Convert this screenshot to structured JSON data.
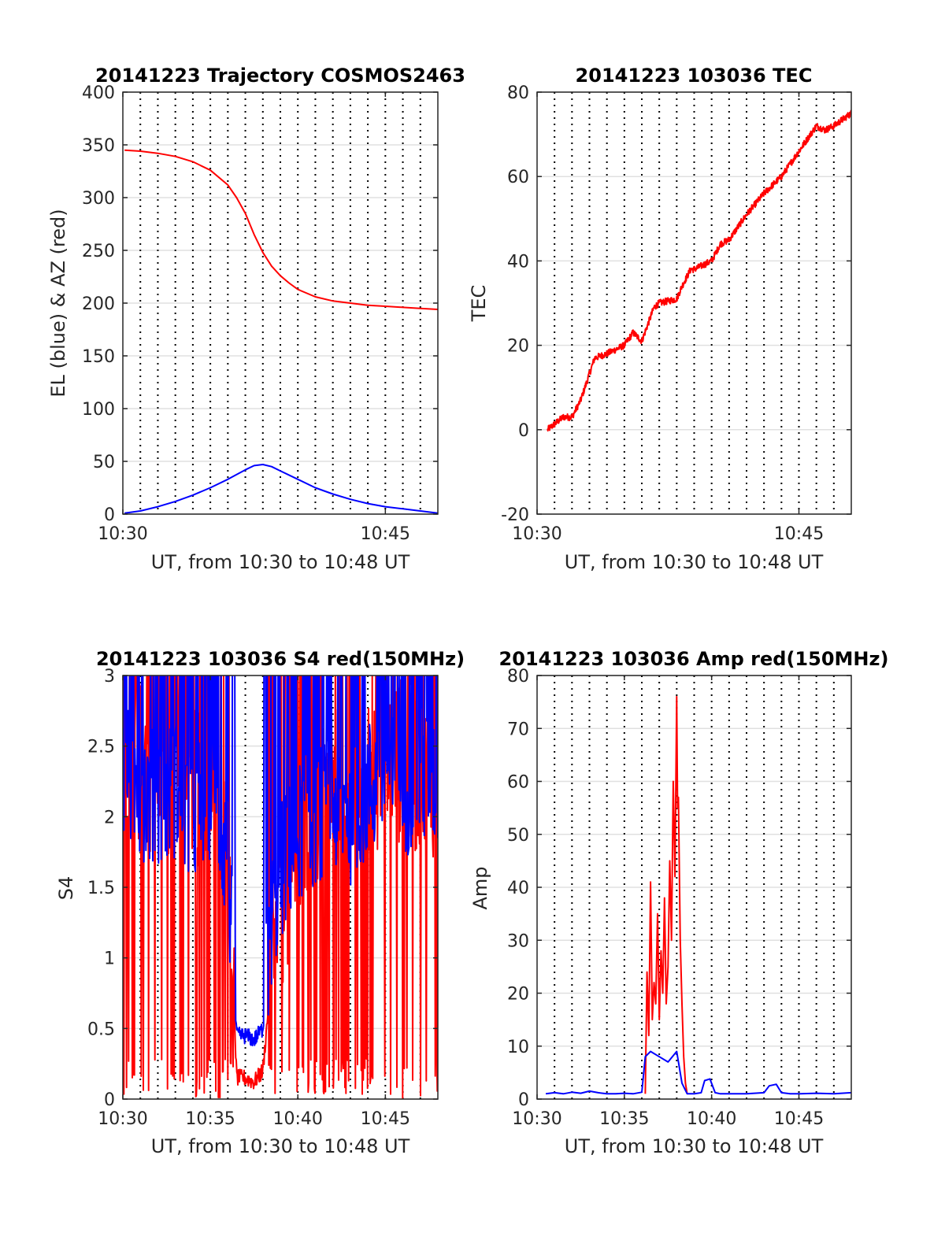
{
  "chart_data": [
    {
      "id": "trajectory",
      "type": "line",
      "title": "20141223 Trajectory COSMOS2463",
      "xlabel": "UT, from 10:30 to 10:48 UT",
      "ylabel": "EL (blue) & AZ (red)",
      "xlim": [
        0,
        18
      ],
      "ylim": [
        0,
        400
      ],
      "x_ticks": [
        {
          "value": 0,
          "label": "10:30"
        },
        {
          "value": 15,
          "label": "10:45"
        }
      ],
      "y_ticks": [
        {
          "value": 0,
          "label": "0"
        },
        {
          "value": 50,
          "label": "50"
        },
        {
          "value": 100,
          "label": "100"
        },
        {
          "value": 150,
          "label": "150"
        },
        {
          "value": 200,
          "label": "200"
        },
        {
          "value": 250,
          "label": "250"
        },
        {
          "value": 300,
          "label": "300"
        },
        {
          "value": 350,
          "label": "350"
        },
        {
          "value": 400,
          "label": "400"
        }
      ],
      "grid": "horizontal solid at y ticks, vertical dotted every minute",
      "series": [
        {
          "color": "#ff0000",
          "x": [
            0.1,
            1,
            2,
            3,
            4,
            5,
            6,
            6.5,
            7,
            7.5,
            8,
            8.5,
            9,
            9.5,
            10,
            11,
            12,
            13,
            14,
            15,
            16,
            17,
            18
          ],
          "y": [
            345,
            344,
            342,
            339,
            334,
            326,
            312,
            300,
            285,
            265,
            248,
            235,
            226,
            219,
            213,
            206,
            202,
            200,
            198,
            197,
            196,
            195,
            194
          ]
        },
        {
          "color": "#0000ff",
          "x": [
            0.1,
            1,
            2,
            3,
            4,
            5,
            6,
            7,
            7.5,
            8,
            8.5,
            9,
            10,
            11,
            12,
            13,
            14,
            15,
            16,
            17,
            18
          ],
          "y": [
            1,
            3,
            7,
            12,
            18,
            25,
            33,
            42,
            46,
            47,
            45,
            41,
            33,
            25,
            19,
            14,
            10,
            7,
            5,
            3,
            1
          ]
        }
      ]
    },
    {
      "id": "tec",
      "type": "line",
      "title": "20141223 103036 TEC",
      "xlabel": "UT, from 10:30 to 10:48 UT",
      "ylabel": "TEC",
      "xlim": [
        0,
        18
      ],
      "ylim": [
        -20,
        80
      ],
      "x_ticks": [
        {
          "value": 0,
          "label": "10:30"
        },
        {
          "value": 15,
          "label": "10:45"
        }
      ],
      "y_ticks": [
        {
          "value": -20,
          "label": "-20"
        },
        {
          "value": 0,
          "label": "0"
        },
        {
          "value": 20,
          "label": "20"
        },
        {
          "value": 40,
          "label": "40"
        },
        {
          "value": 60,
          "label": "60"
        },
        {
          "value": 80,
          "label": "80"
        }
      ],
      "grid": "horizontal solid at y ticks, vertical dotted every minute",
      "series": [
        {
          "color": "#ff0000",
          "noise": 0.8,
          "x": [
            0.6,
            1.5,
            2,
            2.5,
            3.3,
            4,
            5,
            5.5,
            6,
            6.7,
            7,
            8,
            8.3,
            8.8,
            9,
            10,
            10.5,
            11,
            12,
            13,
            14,
            14.5,
            15,
            16,
            16.5,
            17,
            18
          ],
          "y": [
            0,
            3,
            3,
            7,
            17,
            18,
            20,
            23,
            21,
            29,
            30,
            31,
            34,
            38,
            38,
            40,
            44,
            45,
            51,
            56,
            60,
            63,
            66,
            72,
            71,
            72,
            75
          ]
        }
      ]
    },
    {
      "id": "s4",
      "type": "line",
      "title": "20141223 103036 S4 red(150MHz)",
      "xlabel": "UT, from 10:30 to 10:48 UT",
      "ylabel": "S4",
      "xlim": [
        0,
        18
      ],
      "ylim": [
        0,
        3
      ],
      "x_ticks": [
        {
          "value": 0,
          "label": "10:30"
        },
        {
          "value": 5,
          "label": "10:35"
        },
        {
          "value": 10,
          "label": "10:40"
        },
        {
          "value": 15,
          "label": "10:45"
        }
      ],
      "y_ticks": [
        {
          "value": 0,
          "label": "0"
        },
        {
          "value": 0.5,
          "label": "0.5"
        },
        {
          "value": 1,
          "label": "1"
        },
        {
          "value": 1.5,
          "label": "1.5"
        },
        {
          "value": 2,
          "label": "2"
        },
        {
          "value": 2.5,
          "label": "2.5"
        },
        {
          "value": 3,
          "label": "3"
        }
      ],
      "grid": "horizontal solid at y ticks, vertical dotted every minute",
      "series": [
        {
          "color": "#ff0000",
          "noisy": true,
          "x": [
            0,
            1,
            2,
            3,
            4,
            5,
            6,
            6.5,
            7,
            7.5,
            8,
            8.5,
            9,
            10,
            11,
            12,
            13,
            14,
            15,
            16,
            17,
            18
          ],
          "y": [
            2.3,
            2.4,
            2.3,
            2.3,
            2.2,
            2.3,
            2.0,
            0.15,
            0.15,
            0.12,
            0.2,
            0.9,
            1.3,
            1.6,
            2.0,
            2.2,
            2.2,
            2.3,
            2.4,
            2.4,
            2.3,
            2.3
          ]
        },
        {
          "color": "#0000ff",
          "noisy": true,
          "x": [
            0,
            1,
            2,
            3,
            4,
            5,
            6,
            6.5,
            7,
            7.5,
            8,
            8.5,
            9,
            10,
            11,
            12,
            13,
            14,
            15,
            16,
            17,
            18
          ],
          "y": [
            2.3,
            2.2,
            2.1,
            2.2,
            2.0,
            2.2,
            1.7,
            0.45,
            0.45,
            0.42,
            0.5,
            1.3,
            1.6,
            1.9,
            2.0,
            2.1,
            2.0,
            2.2,
            2.3,
            2.2,
            2.3,
            2.2
          ]
        }
      ]
    },
    {
      "id": "amp",
      "type": "line",
      "title": "20141223 103036 Amp red(150MHz)",
      "xlabel": "UT, from 10:30 to 10:48 UT",
      "ylabel": "Amp",
      "xlim": [
        0,
        18
      ],
      "ylim": [
        0,
        80
      ],
      "x_ticks": [
        {
          "value": 0,
          "label": "10:30"
        },
        {
          "value": 5,
          "label": "10:35"
        },
        {
          "value": 10,
          "label": "10:40"
        },
        {
          "value": 15,
          "label": "10:45"
        }
      ],
      "y_ticks": [
        {
          "value": 0,
          "label": "0"
        },
        {
          "value": 10,
          "label": "10"
        },
        {
          "value": 20,
          "label": "20"
        },
        {
          "value": 30,
          "label": "30"
        },
        {
          "value": 40,
          "label": "40"
        },
        {
          "value": 50,
          "label": "50"
        },
        {
          "value": 60,
          "label": "60"
        },
        {
          "value": 70,
          "label": "70"
        },
        {
          "value": 80,
          "label": "80"
        }
      ],
      "grid": "horizontal solid at y ticks, vertical dotted every minute",
      "series": [
        {
          "color": "#ff0000",
          "x": [
            6.2,
            6.3,
            6.4,
            6.5,
            6.6,
            6.7,
            6.8,
            6.9,
            7.0,
            7.1,
            7.2,
            7.3,
            7.4,
            7.5,
            7.6,
            7.7,
            7.8,
            7.9,
            8.0,
            8.05,
            8.1,
            8.2,
            8.3,
            8.4,
            8.5,
            8.6
          ],
          "y": [
            1,
            24,
            12,
            41,
            15,
            22,
            18,
            35,
            15,
            28,
            20,
            38,
            18,
            25,
            45,
            30,
            60,
            42,
            76,
            55,
            57,
            30,
            18,
            8,
            3,
            1
          ]
        },
        {
          "color": "#0000ff",
          "x": [
            0.5,
            1,
            1.5,
            2,
            2.5,
            3,
            3.5,
            4,
            4.5,
            5,
            5.5,
            6,
            6.2,
            6.5,
            7,
            7.5,
            8,
            8.3,
            8.6,
            9,
            9.4,
            9.6,
            9.9,
            10.2,
            10.5,
            11,
            12,
            13,
            13.3,
            13.7,
            14,
            14.5,
            15,
            16,
            17,
            18
          ],
          "y": [
            1,
            1.2,
            1,
            1.3,
            1.1,
            1.5,
            1.2,
            1,
            1,
            1.1,
            1,
            1.3,
            8,
            9,
            8,
            7,
            9,
            3,
            1,
            1,
            1.2,
            3.5,
            3.8,
            1.2,
            1,
            1,
            1,
            1.2,
            2.5,
            2.8,
            1.2,
            1,
            1,
            1.1,
            1,
            1.2
          ]
        }
      ]
    }
  ]
}
